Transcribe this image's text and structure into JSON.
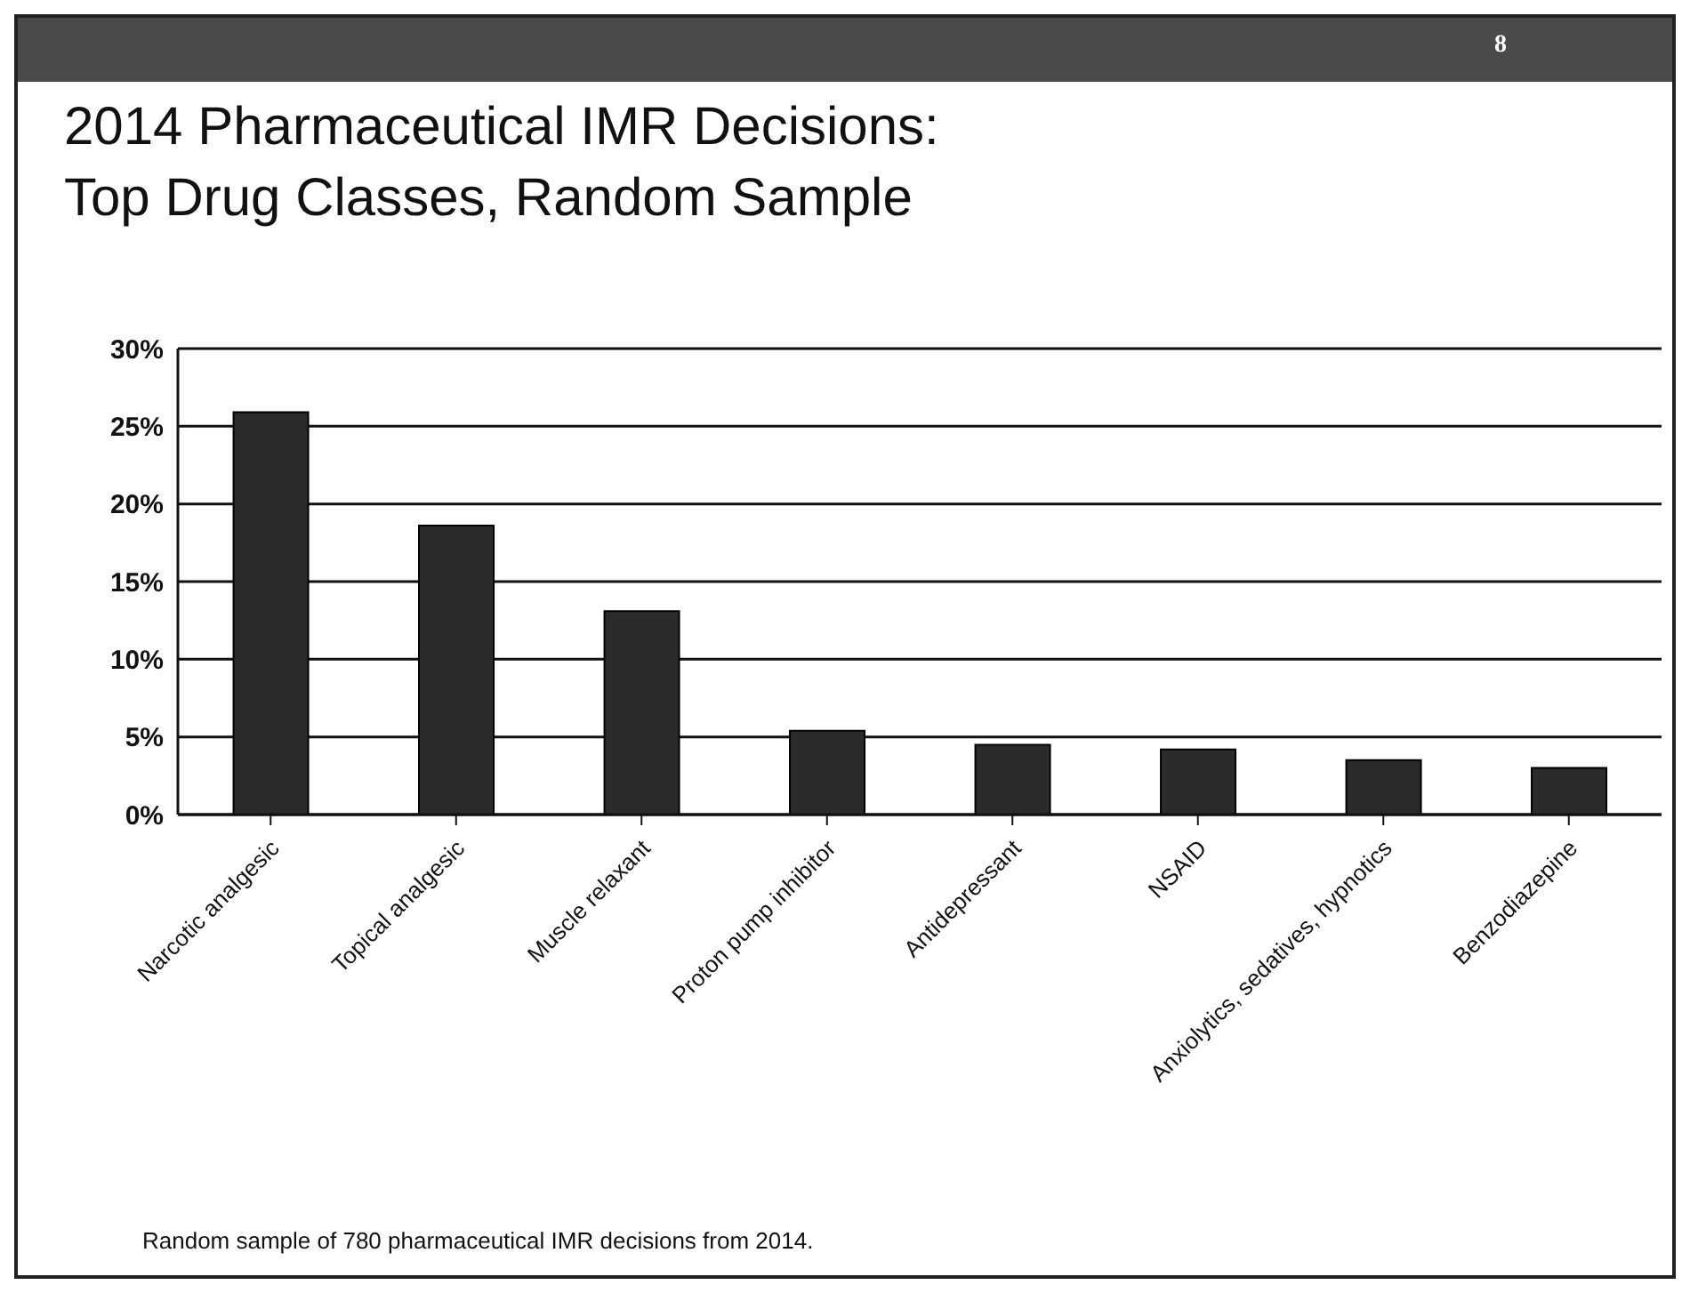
{
  "chart_data": {
    "type": "bar",
    "title": "2014 Pharmaceutical IMR Decisions:\nTop Drug Classes, Random Sample",
    "categories": [
      "Narcotic analgesic",
      "Topical analgesic",
      "Muscle relaxant",
      "Proton pump inhibitor",
      "Antidepressant",
      "NSAID",
      "Anxiolytics, sedatives, hypnotics",
      "Benzodiazepine"
    ],
    "values": [
      25.9,
      18.6,
      13.1,
      5.4,
      4.5,
      4.2,
      3.5,
      3.0
    ],
    "color": "#2b2b2b",
    "ylim": [
      0,
      30
    ],
    "yticks": [
      {
        "value": 0,
        "label": "0%"
      },
      {
        "value": 5,
        "label": "5%"
      },
      {
        "value": 10,
        "label": "10%"
      },
      {
        "value": 15,
        "label": "15%"
      },
      {
        "value": 20,
        "label": "20%"
      },
      {
        "value": 25,
        "label": "25%"
      },
      {
        "value": 30,
        "label": "30%"
      }
    ],
    "grid": "y",
    "annotations": [
      "8",
      "Random sample of 780 pharmaceutical IMR decisions from 2014."
    ]
  }
}
